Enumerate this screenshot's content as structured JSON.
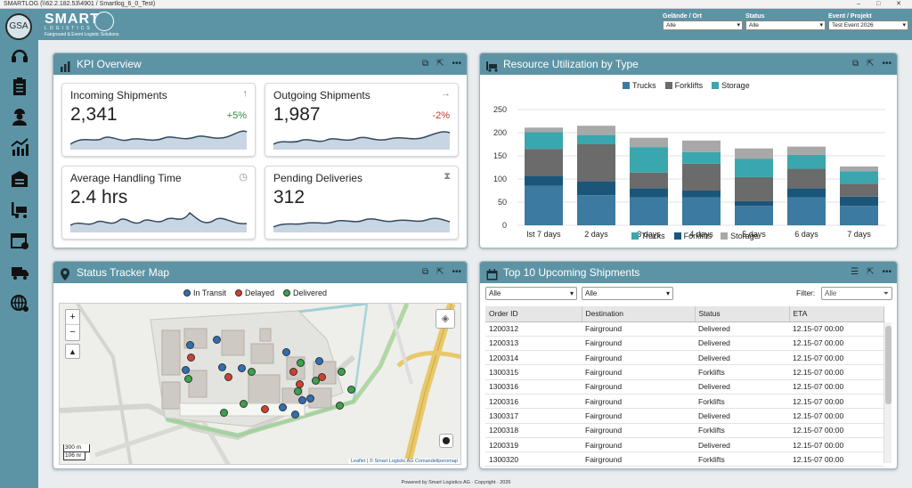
{
  "window": {
    "title": "SMARTLOG (\\\\62.2.182.53\\4901 / Smartlog_6_0_Test)"
  },
  "brand": {
    "name": "SMART",
    "sub": "LOGISTICS",
    "tag": "Fairground & Event Logistic Solutions",
    "avatar": "GSA"
  },
  "filters": [
    {
      "label": "Gelände / Ort",
      "value": "Alle"
    },
    {
      "label": "Status",
      "value": "Alle"
    },
    {
      "label": "Event / Projekt",
      "value": "Test Event 2026"
    }
  ],
  "sidebar": {
    "icons": [
      "headset-icon",
      "clipboard-icon",
      "worker-icon",
      "chart-icon",
      "warehouse-icon",
      "forklift-icon",
      "calendar-alert-icon",
      "truck-icon",
      "globe-settings-icon"
    ]
  },
  "kpi": {
    "title": "KPI Overview",
    "cards": [
      {
        "title": "Incoming Shipments",
        "value": "2,341",
        "change": "+5%",
        "icon": "↑",
        "color": "#2e8b3a"
      },
      {
        "title": "Outgoing Shipments",
        "value": "1,987",
        "change": "-2%",
        "icon": "→",
        "color": "#c0392b"
      },
      {
        "title": "Average Handling Time",
        "value": "2.4 hrs",
        "change": "",
        "icon": "◷",
        "color": ""
      },
      {
        "title": "Pending Deliveries",
        "value": "312",
        "change": "",
        "icon": "⧗",
        "color": ""
      }
    ]
  },
  "resource": {
    "title": "Resource Utilization by Type",
    "legend_top": [
      "Trucks",
      "Forklifts",
      "Storage"
    ],
    "legend_bottom": [
      "Trucks",
      "Forklifts",
      "Storage"
    ]
  },
  "chart_data": {
    "type": "bar",
    "stacked": true,
    "categories": [
      "lst 7 days",
      "2 days",
      "3 days",
      "4 days",
      "5 days",
      "6 days",
      "7 days"
    ],
    "yticks": [
      0,
      50,
      100,
      150,
      200,
      250
    ],
    "ylim": [
      0,
      250
    ],
    "series": [
      {
        "name": "Trucks",
        "values": [
          85,
          65,
          60,
          60,
          42,
          60,
          42
        ],
        "color": "#3d7aa1"
      },
      {
        "name": "Forklifts",
        "values": [
          22,
          30,
          20,
          15,
          10,
          20,
          20
        ],
        "color": "#1b5679"
      },
      {
        "name": "Forklifts",
        "values": [
          58,
          80,
          34,
          58,
          52,
          42,
          28
        ],
        "color": "#6b6b6b"
      },
      {
        "name": "Storage",
        "values": [
          36,
          20,
          55,
          25,
          40,
          30,
          27
        ],
        "color": "#3aa6ad"
      },
      {
        "name": "Storage",
        "values": [
          10,
          20,
          20,
          25,
          22,
          18,
          10
        ],
        "color": "#a8a8a8"
      }
    ],
    "grid": true
  },
  "map": {
    "title": "Status Tracker Map",
    "legend": [
      {
        "label": "In Transit",
        "color": "#2f6fb5"
      },
      {
        "label": "Delayed",
        "color": "#d0402e"
      },
      {
        "label": "Delivered",
        "color": "#3aa34a"
      }
    ],
    "zoom_in": "+",
    "zoom_out": "−",
    "scale_m": "300 m",
    "scale_ft": "106 nr",
    "attribution": "Leaflet | © Smart Logistic AG Comandeliperomap"
  },
  "shipments": {
    "title": "Top 10 Upcoming Shipments",
    "filter1": "Alle",
    "filter2": "Alle",
    "filter_label": "Filter:",
    "filter_value": "Alle",
    "columns": [
      "Order ID",
      "Destination",
      "Status",
      "ETA"
    ],
    "rows": [
      [
        "1200312",
        "Fairground",
        "Delivered",
        "12.15-07 00:00"
      ],
      [
        "1200313",
        "Fairground",
        "Delivered",
        "12.15-07 00:00"
      ],
      [
        "1200314",
        "Fairground",
        "Delivered",
        "12.15-07 00:00"
      ],
      [
        "1300315",
        "Fairground",
        "Forklifts",
        "12.15-07 00:00"
      ],
      [
        "1300316",
        "Fairground",
        "Delivered",
        "12.15-07 00:00"
      ],
      [
        "1200316",
        "Fairground",
        "Forklifts",
        "12.15-07 00:00"
      ],
      [
        "1300317",
        "Fairground",
        "Delivered",
        "12.15-07 00:00"
      ],
      [
        "1200318",
        "Fairground",
        "Forklifts",
        "12.15-07 00:00"
      ],
      [
        "1200319",
        "Fairground",
        "Delivered",
        "12.15-07 00:00"
      ],
      [
        "1300320",
        "Fairground",
        "Forklifts",
        "12.15-07 00:00"
      ]
    ]
  },
  "footer": "Powered by Smart Logistics AG · Copyright · 2026"
}
